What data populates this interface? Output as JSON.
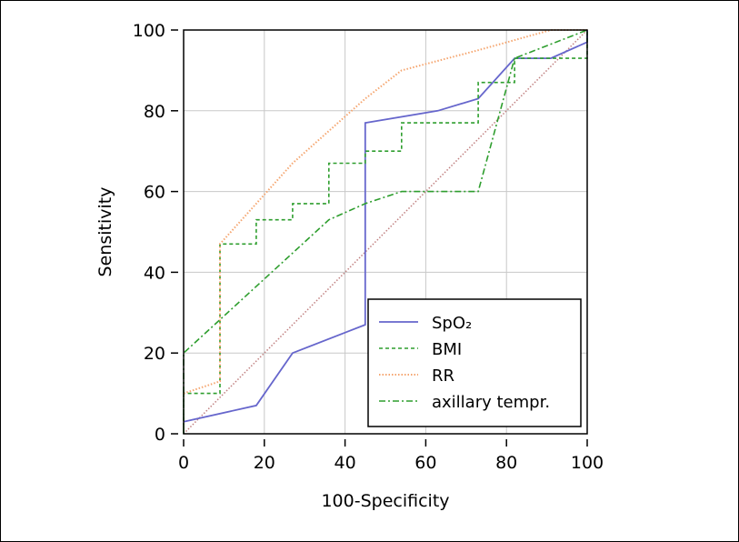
{
  "chart_data": {
    "type": "line",
    "title": "",
    "xlabel": "100-Specificity",
    "ylabel": "Sensitivity",
    "xlim": [
      0,
      100
    ],
    "ylim": [
      0,
      100
    ],
    "xticks": [
      "0",
      "20",
      "40",
      "60",
      "80",
      "100"
    ],
    "yticks": [
      "0",
      "20",
      "40",
      "60",
      "80",
      "100"
    ],
    "grid": true,
    "legend_position": "bottom-right",
    "series": [
      {
        "name": "SpO₂",
        "color": "#6666cc",
        "style": "solid",
        "x": [
          0,
          18,
          27,
          45,
          45,
          63,
          73,
          82,
          91,
          100,
          100
        ],
        "y": [
          3,
          7,
          20,
          27,
          77,
          80,
          83,
          93,
          93,
          97,
          100
        ]
      },
      {
        "name": "BMI",
        "color": "#2e9e2e",
        "style": "dashed",
        "x": [
          0,
          0,
          9,
          9,
          18,
          18,
          27,
          27,
          36,
          36,
          45,
          45,
          54,
          54,
          73,
          73,
          82,
          82,
          100,
          100
        ],
        "y": [
          0,
          10,
          10,
          47,
          47,
          53,
          53,
          57,
          57,
          67,
          67,
          70,
          70,
          77,
          77,
          87,
          87,
          93,
          93,
          100
        ]
      },
      {
        "name": "RR",
        "color": "#f5a670",
        "style": "dotted",
        "x": [
          0,
          9,
          9,
          18,
          27,
          36,
          45,
          54,
          73,
          91,
          100
        ],
        "y": [
          10,
          13,
          47,
          57,
          67,
          75,
          83,
          90,
          95,
          100,
          100
        ]
      },
      {
        "name": "axillary tempr.",
        "color": "#2e9e2e",
        "style": "dashdot",
        "x": [
          0,
          0,
          36,
          45,
          54,
          73,
          82,
          100
        ],
        "y": [
          0,
          20,
          53,
          57,
          60,
          60,
          93,
          100
        ]
      }
    ],
    "reference_line": {
      "x": [
        0,
        100
      ],
      "y": [
        0,
        100
      ],
      "color": "#c08080"
    }
  }
}
